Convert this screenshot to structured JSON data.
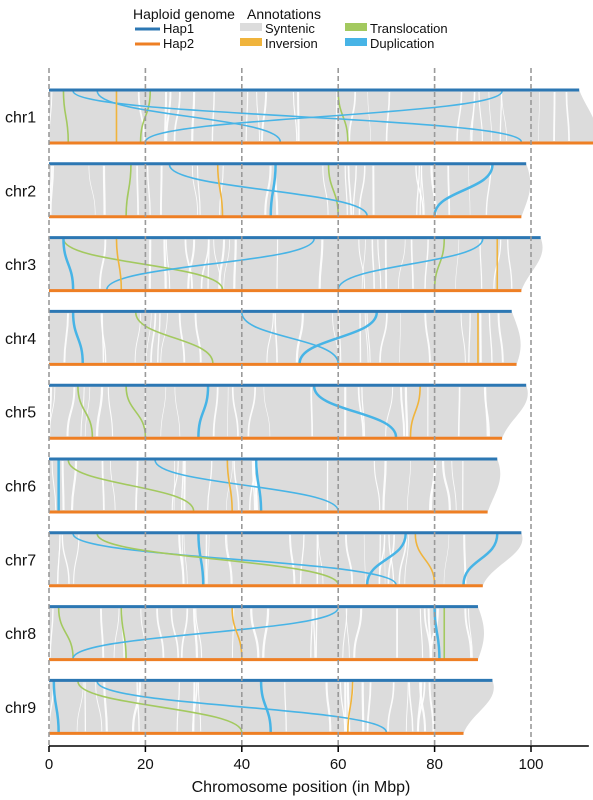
{
  "chart_data": {
    "type": "synteny",
    "xlabel": "Chromosome position (in Mbp)",
    "x_ticks": [
      0,
      20,
      40,
      60,
      80,
      100
    ],
    "xlim": [
      0,
      112
    ],
    "legend": {
      "genome_title": "Haploid genome",
      "genomes": [
        {
          "name": "Hap1",
          "color": "#2c77b3"
        },
        {
          "name": "Hap2",
          "color": "#ee7f24"
        }
      ],
      "annotation_title": "Annotations",
      "annotations": [
        {
          "name": "Syntenic",
          "color": "#dcdcdc"
        },
        {
          "name": "Inversion",
          "color": "#f0b43c"
        },
        {
          "name": "Translocation",
          "color": "#a3c95f"
        },
        {
          "name": "Duplication",
          "color": "#47b4e6"
        }
      ]
    },
    "chromosomes": [
      {
        "name": "chr1",
        "hap1_length": 110,
        "hap2_length": 113,
        "links": [
          {
            "type": "Translocation",
            "hap1": 21,
            "hap2": 19
          },
          {
            "type": "Translocation",
            "hap1": 3,
            "hap2": 4
          },
          {
            "type": "Translocation",
            "hap1": 60,
            "hap2": 62
          },
          {
            "type": "Duplication",
            "hap1": 5,
            "hap2": 98
          },
          {
            "type": "Duplication",
            "hap1": 94,
            "hap2": 20
          },
          {
            "type": "Duplication",
            "hap1": 10,
            "hap2": 48
          },
          {
            "type": "Inversion",
            "hap1": 14,
            "hap2": 14
          }
        ]
      },
      {
        "name": "chr2",
        "hap1_length": 99,
        "hap2_length": 98,
        "links": [
          {
            "type": "Translocation",
            "hap1": 58,
            "hap2": 60
          },
          {
            "type": "Translocation",
            "hap1": 17,
            "hap2": 16
          },
          {
            "type": "Duplication",
            "hap1": 25,
            "hap2": 66
          },
          {
            "type": "Duplication",
            "hap1": 47,
            "hap2": 46
          },
          {
            "type": "Duplication",
            "hap1": 92,
            "hap2": 80
          },
          {
            "type": "Inversion",
            "hap1": 35,
            "hap2": 36
          }
        ]
      },
      {
        "name": "chr3",
        "hap1_length": 102,
        "hap2_length": 98,
        "links": [
          {
            "type": "Translocation",
            "hap1": 82,
            "hap2": 80
          },
          {
            "type": "Translocation",
            "hap1": 3,
            "hap2": 36
          },
          {
            "type": "Duplication",
            "hap1": 3,
            "hap2": 5
          },
          {
            "type": "Duplication",
            "hap1": 55,
            "hap2": 12
          },
          {
            "type": "Duplication",
            "hap1": 90,
            "hap2": 60
          },
          {
            "type": "Inversion",
            "hap1": 14,
            "hap2": 15
          },
          {
            "type": "Inversion",
            "hap1": 93,
            "hap2": 93
          }
        ]
      },
      {
        "name": "chr4",
        "hap1_length": 96,
        "hap2_length": 97,
        "links": [
          {
            "type": "Duplication",
            "hap1": 68,
            "hap2": 52
          },
          {
            "type": "Duplication",
            "hap1": 5,
            "hap2": 7
          },
          {
            "type": "Duplication",
            "hap1": 40,
            "hap2": 60
          },
          {
            "type": "Translocation",
            "hap1": 18,
            "hap2": 34
          },
          {
            "type": "Inversion",
            "hap1": 89,
            "hap2": 89
          }
        ]
      },
      {
        "name": "chr5",
        "hap1_length": 99,
        "hap2_length": 94,
        "links": [
          {
            "type": "Translocation",
            "hap1": 16,
            "hap2": 20
          },
          {
            "type": "Translocation",
            "hap1": 6,
            "hap2": 9
          },
          {
            "type": "Duplication",
            "hap1": 33,
            "hap2": 31
          },
          {
            "type": "Duplication",
            "hap1": 55,
            "hap2": 72
          },
          {
            "type": "Inversion",
            "hap1": 77,
            "hap2": 75
          }
        ]
      },
      {
        "name": "chr6",
        "hap1_length": 93,
        "hap2_length": 91,
        "links": [
          {
            "type": "Duplication",
            "hap1": 43,
            "hap2": 44
          },
          {
            "type": "Duplication",
            "hap1": 2,
            "hap2": 2
          },
          {
            "type": "Duplication",
            "hap1": 22,
            "hap2": 60
          },
          {
            "type": "Translocation",
            "hap1": 4,
            "hap2": 30
          },
          {
            "type": "Inversion",
            "hap1": 37,
            "hap2": 38
          }
        ]
      },
      {
        "name": "chr7",
        "hap1_length": 98,
        "hap2_length": 90,
        "links": [
          {
            "type": "Duplication",
            "hap1": 74,
            "hap2": 66
          },
          {
            "type": "Duplication",
            "hap1": 93,
            "hap2": 86
          },
          {
            "type": "Duplication",
            "hap1": 5,
            "hap2": 72
          },
          {
            "type": "Duplication",
            "hap1": 31,
            "hap2": 32
          },
          {
            "type": "Translocation",
            "hap1": 10,
            "hap2": 60
          },
          {
            "type": "Inversion",
            "hap1": 76,
            "hap2": 80
          }
        ]
      },
      {
        "name": "chr8",
        "hap1_length": 89,
        "hap2_length": 89,
        "links": [
          {
            "type": "Duplication",
            "hap1": 80,
            "hap2": 81
          },
          {
            "type": "Translocation",
            "hap1": 15,
            "hap2": 16
          },
          {
            "type": "Translocation",
            "hap1": 2,
            "hap2": 5
          },
          {
            "type": "Translocation",
            "hap1": 82,
            "hap2": 82
          },
          {
            "type": "Duplication",
            "hap1": 60,
            "hap2": 5
          },
          {
            "type": "Inversion",
            "hap1": 38,
            "hap2": 40
          }
        ]
      },
      {
        "name": "chr9",
        "hap1_length": 92,
        "hap2_length": 86,
        "links": [
          {
            "type": "Duplication",
            "hap1": 1,
            "hap2": 2
          },
          {
            "type": "Duplication",
            "hap1": 44,
            "hap2": 46
          },
          {
            "type": "Duplication",
            "hap1": 10,
            "hap2": 70
          },
          {
            "type": "Translocation",
            "hap1": 6,
            "hap2": 40
          },
          {
            "type": "Inversion",
            "hap1": 63,
            "hap2": 62
          }
        ]
      }
    ]
  }
}
